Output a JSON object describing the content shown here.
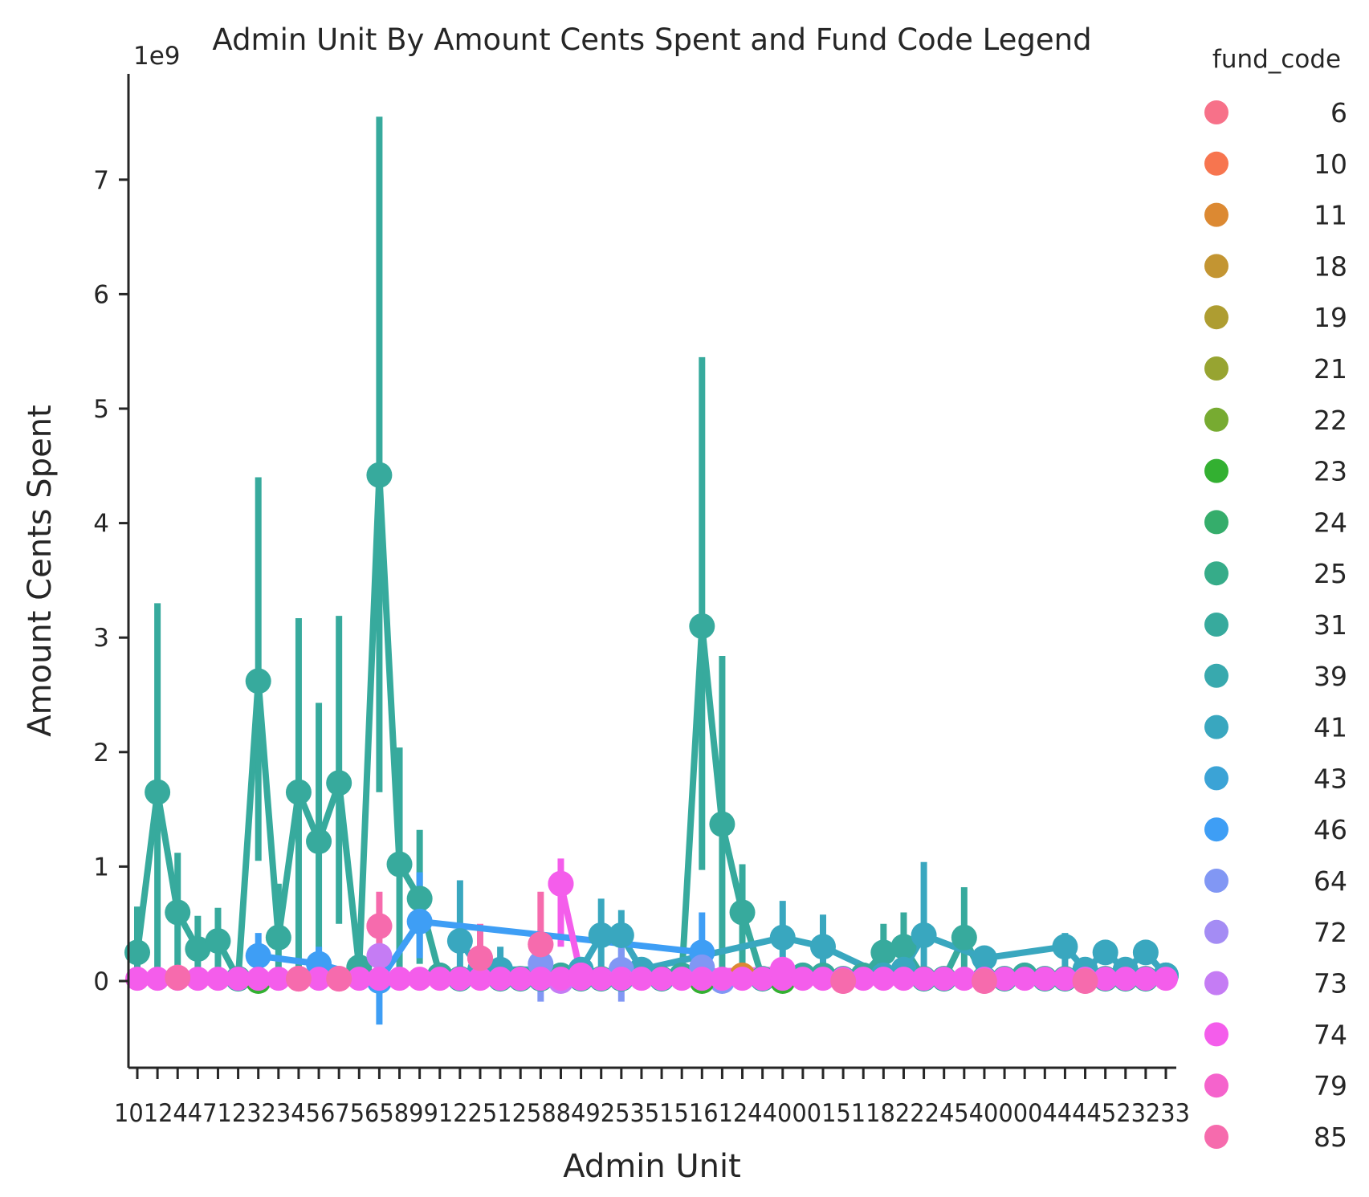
{
  "chart_data": {
    "type": "point",
    "title": "Admin Unit By Amount Cents Spent and Fund Code Legend",
    "xlabel": "Admin Unit",
    "ylabel": "Amount Cents Spent",
    "offset_label": "1e9",
    "ylim": [
      -0.78,
      7.95
    ],
    "yticks": [
      0,
      1,
      2,
      3,
      4,
      5,
      6,
      7
    ],
    "x_tick_count": 52,
    "x_tick_text": "1012447123234567565899122512588492535151612440001511822245400004444523233",
    "legend": {
      "title": "fund_code",
      "placement": "right",
      "entries": [
        {
          "label": "6",
          "color": "#f77189"
        },
        {
          "label": "10",
          "color": "#f7754f"
        },
        {
          "label": "11",
          "color": "#dc8932"
        },
        {
          "label": "18",
          "color": "#c39532"
        },
        {
          "label": "19",
          "color": "#ae9d31"
        },
        {
          "label": "21",
          "color": "#97a431"
        },
        {
          "label": "22",
          "color": "#77ab31"
        },
        {
          "label": "23",
          "color": "#33b031"
        },
        {
          "label": "24",
          "color": "#35ad6b"
        },
        {
          "label": "25",
          "color": "#36ac89"
        },
        {
          "label": "31",
          "color": "#37aa9d"
        },
        {
          "label": "39",
          "color": "#38a9ae"
        },
        {
          "label": "41",
          "color": "#39a7bf"
        },
        {
          "label": "43",
          "color": "#3ba3d6"
        },
        {
          "label": "46",
          "color": "#3e9ef5"
        },
        {
          "label": "64",
          "color": "#8197f4"
        },
        {
          "label": "72",
          "color": "#a48cf4"
        },
        {
          "label": "73",
          "color": "#c57cf4"
        },
        {
          "label": "74",
          "color": "#f45deb"
        },
        {
          "label": "79",
          "color": "#f563cc"
        },
        {
          "label": "85",
          "color": "#f66bad"
        }
      ]
    },
    "series": [
      {
        "name": "31",
        "color": "#37aa9d",
        "connected": true,
        "points": [
          [
            0,
            0.25,
            0.0,
            0.65
          ],
          [
            1,
            1.65,
            0.1,
            3.3
          ],
          [
            2,
            0.6,
            0.1,
            1.12
          ],
          [
            3,
            0.28,
            0.0,
            0.57
          ],
          [
            4,
            0.35,
            0.0,
            0.64
          ],
          [
            5,
            0.02,
            null,
            null
          ],
          [
            6,
            2.62,
            1.05,
            4.4
          ],
          [
            7,
            0.38,
            0.0,
            0.85
          ],
          [
            8,
            1.65,
            0.1,
            3.17
          ],
          [
            9,
            1.22,
            0.1,
            2.43
          ],
          [
            10,
            1.73,
            0.5,
            3.19
          ],
          [
            11,
            0.12,
            null,
            null
          ],
          [
            12,
            4.42,
            1.65,
            7.55
          ],
          [
            13,
            1.02,
            0.1,
            2.04
          ],
          [
            14,
            0.72,
            0.15,
            1.32
          ],
          [
            15,
            0.05,
            null,
            null
          ],
          [
            16,
            0.02,
            null,
            null
          ],
          [
            17,
            0.05,
            null,
            null
          ],
          [
            18,
            0.02,
            null,
            null
          ],
          [
            19,
            0.02,
            null,
            null
          ],
          [
            20,
            0.02,
            null,
            null
          ],
          [
            21,
            0.05,
            null,
            null
          ],
          [
            22,
            0.02,
            null,
            null
          ],
          [
            23,
            0.02,
            null,
            null
          ],
          [
            24,
            0.02,
            null,
            null
          ],
          [
            25,
            0.05,
            null,
            null
          ],
          [
            26,
            0.02,
            null,
            null
          ],
          [
            27,
            0.05,
            null,
            null
          ],
          [
            28,
            3.1,
            0.97,
            5.45
          ],
          [
            29,
            1.37,
            0.1,
            2.84
          ],
          [
            30,
            0.6,
            0.05,
            1.02
          ],
          [
            31,
            0.02,
            null,
            null
          ],
          [
            32,
            0.05,
            null,
            null
          ],
          [
            33,
            0.05,
            null,
            null
          ],
          [
            34,
            0.05,
            null,
            null
          ],
          [
            35,
            0.02,
            null,
            null
          ],
          [
            36,
            0.05,
            null,
            null
          ],
          [
            37,
            0.25,
            0.0,
            0.5
          ],
          [
            38,
            0.3,
            0.0,
            0.6
          ],
          [
            39,
            0.02,
            null,
            null
          ],
          [
            40,
            0.02,
            null,
            null
          ],
          [
            41,
            0.38,
            0.0,
            0.82
          ],
          [
            42,
            0.02,
            null,
            null
          ],
          [
            43,
            0.02,
            null,
            null
          ],
          [
            44,
            0.05,
            null,
            null
          ],
          [
            45,
            0.02,
            null,
            null
          ],
          [
            46,
            0.02,
            null,
            null
          ],
          [
            47,
            0.02,
            null,
            null
          ],
          [
            48,
            0.02,
            null,
            null
          ],
          [
            49,
            0.02,
            null,
            null
          ],
          [
            50,
            0.02,
            null,
            null
          ],
          [
            51,
            0.05,
            null,
            null
          ]
        ]
      },
      {
        "name": "41",
        "color": "#39a7bf",
        "connected": true,
        "points": [
          [
            16,
            0.35,
            0.0,
            0.88
          ],
          [
            17,
            0.1,
            0.0,
            0.3
          ],
          [
            18,
            0.1,
            0.0,
            0.3
          ],
          [
            22,
            0.1,
            0.0,
            0.2
          ],
          [
            23,
            0.4,
            0.0,
            0.72
          ],
          [
            24,
            0.4,
            0.05,
            0.62
          ],
          [
            25,
            0.1,
            null,
            null
          ],
          [
            32,
            0.38,
            0.0,
            0.7
          ],
          [
            34,
            0.3,
            0.0,
            0.58
          ],
          [
            37,
            0.05,
            null,
            null
          ],
          [
            38,
            0.1,
            null,
            null
          ],
          [
            39,
            0.4,
            0.0,
            1.04
          ],
          [
            42,
            0.2,
            null,
            null
          ],
          [
            46,
            0.3,
            0.0,
            0.42
          ],
          [
            47,
            0.1,
            null,
            null
          ],
          [
            48,
            0.25,
            null,
            null
          ],
          [
            49,
            0.1,
            null,
            null
          ],
          [
            50,
            0.25,
            null,
            null
          ],
          [
            51,
            0.05,
            null,
            null
          ]
        ]
      },
      {
        "name": "46",
        "color": "#3e9ef5",
        "connected": true,
        "points": [
          [
            6,
            0.22,
            0.0,
            0.42
          ],
          [
            9,
            0.15,
            0.0,
            0.3
          ],
          [
            12,
            0.0,
            -0.38,
            0.3
          ],
          [
            14,
            0.52,
            0.2,
            0.95
          ],
          [
            28,
            0.25,
            0.0,
            0.6
          ]
        ]
      },
      {
        "name": "64",
        "color": "#8197f4",
        "connected": false,
        "points": [
          [
            20,
            0.15,
            -0.18,
            0.45
          ],
          [
            24,
            0.1,
            -0.18,
            0.35
          ],
          [
            28,
            0.12,
            null,
            null
          ],
          [
            29,
            0.0,
            null,
            null
          ]
        ]
      },
      {
        "name": "73",
        "color": "#c57cf4",
        "connected": false,
        "points": [
          [
            12,
            0.22,
            null,
            null
          ],
          [
            21,
            0.0,
            null,
            null
          ]
        ]
      },
      {
        "name": "74",
        "color": "#f45deb",
        "connected": true,
        "points": [
          [
            21,
            0.85,
            0.3,
            1.07
          ],
          [
            22,
            0.05,
            null,
            null
          ],
          [
            32,
            0.1,
            null,
            null
          ]
        ]
      },
      {
        "name": "85",
        "color": "#f66bad",
        "connected": false,
        "points": [
          [
            2,
            0.03,
            null,
            null
          ],
          [
            8,
            0.02,
            null,
            null
          ],
          [
            10,
            0.02,
            null,
            null
          ],
          [
            12,
            0.48,
            0.2,
            0.78
          ],
          [
            17,
            0.2,
            -0.02,
            0.5
          ],
          [
            20,
            0.32,
            -0.02,
            0.78
          ],
          [
            35,
            0.0,
            null,
            null
          ],
          [
            42,
            0.0,
            null,
            null
          ],
          [
            47,
            0.0,
            null,
            null
          ]
        ]
      },
      {
        "name": "11",
        "color": "#dc8932",
        "connected": false,
        "points": [
          [
            30,
            0.05,
            null,
            null
          ]
        ]
      },
      {
        "name": "23",
        "color": "#33b031",
        "connected": false,
        "points": [
          [
            6,
            0.0,
            null,
            null
          ],
          [
            28,
            0.0,
            null,
            null
          ],
          [
            32,
            0.0,
            null,
            null
          ]
        ]
      }
    ]
  }
}
